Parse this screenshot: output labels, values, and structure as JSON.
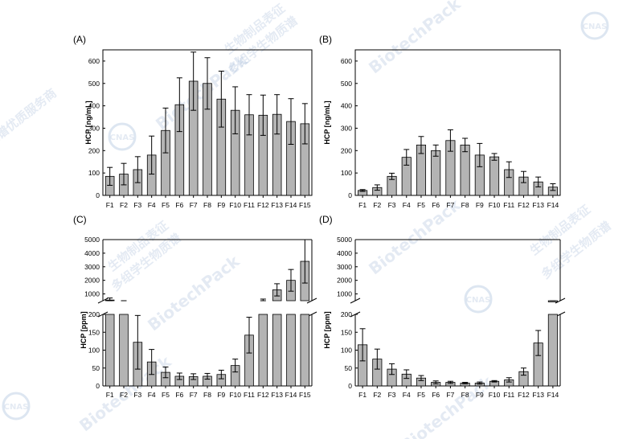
{
  "chart_data": [
    {
      "panel": "(A)",
      "type": "bar",
      "ylabel": "HCP [ng/mL]",
      "ylim": [
        0,
        650
      ],
      "yticks": [
        0,
        100,
        200,
        300,
        400,
        500,
        600
      ],
      "categories": [
        "F1",
        "F2",
        "F3",
        "F4",
        "F5",
        "F6",
        "F7",
        "F8",
        "F9",
        "F10",
        "F11",
        "F12",
        "F13",
        "F14",
        "F15"
      ],
      "values": [
        85,
        95,
        115,
        180,
        290,
        405,
        510,
        500,
        430,
        380,
        360,
        358,
        362,
        330,
        320
      ],
      "errors": [
        40,
        48,
        58,
        85,
        100,
        120,
        130,
        115,
        125,
        105,
        90,
        90,
        88,
        102,
        90
      ]
    },
    {
      "panel": "(B)",
      "type": "bar",
      "ylabel": "HCP [ng/mL]",
      "ylim": [
        0,
        650
      ],
      "yticks": [
        0,
        100,
        200,
        300,
        400,
        500,
        600
      ],
      "categories": [
        "F1",
        "F2",
        "F3",
        "F4",
        "F5",
        "F6",
        "F7",
        "F8",
        "F9",
        "F10",
        "F11",
        "F12",
        "F13",
        "F14"
      ],
      "values": [
        22,
        35,
        85,
        170,
        225,
        200,
        245,
        225,
        180,
        172,
        115,
        82,
        60,
        37
      ],
      "errors": [
        4,
        12,
        14,
        35,
        38,
        25,
        48,
        30,
        52,
        15,
        35,
        25,
        22,
        15
      ]
    },
    {
      "panel": "(C)",
      "type": "bar",
      "ylabel": "HCP [ppm]",
      "broken_axis": true,
      "lower_ylim": [
        0,
        200
      ],
      "lower_yticks": [
        0,
        50,
        100,
        150,
        200
      ],
      "upper_ylim": [
        500,
        5000
      ],
      "upper_yticks": [
        1000,
        2000,
        3000,
        4000,
        5000
      ],
      "categories": [
        "F1",
        "F2",
        "F3",
        "F4",
        "F5",
        "F6",
        "F7",
        "F8",
        "F9",
        "F10",
        "F11",
        "F12",
        "F13",
        "F14",
        "F15"
      ],
      "values": [
        550,
        400,
        122,
        67,
        38,
        27,
        26,
        27,
        32,
        57,
        142,
        500,
        1300,
        2000,
        3400
      ],
      "errors": [
        150,
        80,
        75,
        35,
        15,
        9,
        8,
        8,
        12,
        18,
        50,
        120,
        450,
        800,
        1600
      ]
    },
    {
      "panel": "(D)",
      "type": "bar",
      "ylabel": "HCP [ppm]",
      "broken_axis": true,
      "lower_ylim": [
        0,
        200
      ],
      "lower_yticks": [
        0,
        50,
        100,
        150,
        200
      ],
      "upper_ylim": [
        500,
        5000
      ],
      "upper_yticks": [
        1000,
        2000,
        3000,
        4000,
        5000
      ],
      "categories": [
        "F1",
        "F2",
        "F3",
        "F4",
        "F5",
        "F6",
        "F7",
        "F8",
        "F9",
        "F10",
        "F11",
        "F12",
        "F13",
        "F14"
      ],
      "values": [
        115,
        75,
        47,
        33,
        22,
        10,
        10,
        8,
        8,
        13,
        17,
        40,
        120,
        200
      ],
      "errors": [
        45,
        28,
        15,
        12,
        7,
        4,
        3,
        2,
        3,
        2,
        6,
        10,
        35,
        0
      ],
      "upper_values": [
        null,
        null,
        null,
        null,
        null,
        null,
        null,
        null,
        null,
        null,
        null,
        null,
        null,
        320
      ],
      "upper_errors": [
        null,
        null,
        null,
        null,
        null,
        null,
        null,
        null,
        null,
        null,
        null,
        null,
        null,
        30
      ]
    }
  ],
  "watermarks": {
    "brand": "BiotechPack",
    "cn_line1": "生物制品表征",
    "cn_line2": "多组学生物质谱",
    "cn_line3": "质谱优质服务商",
    "cnas": "CNAS"
  },
  "colors": {
    "bar": "#b4b4b4",
    "axis": "#000000",
    "watermark": "#9fb7d6"
  }
}
